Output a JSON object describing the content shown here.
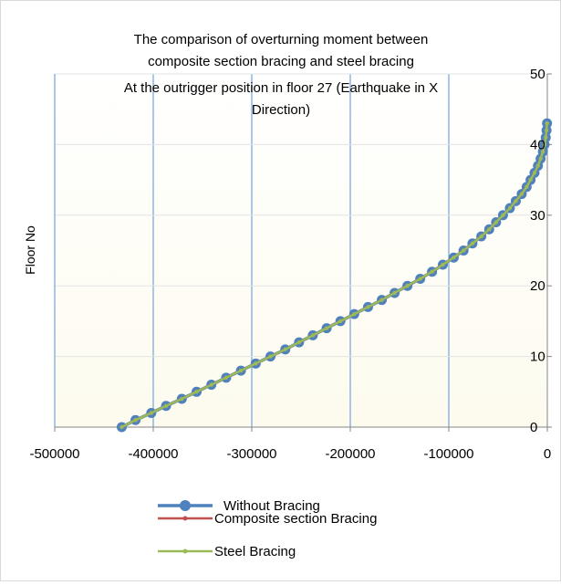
{
  "chart_data": {
    "type": "line",
    "title_lines": [
      "The comparison of overturning moment between",
      "composite section bracing and steel bracing",
      "At the outrigger position in floor 27 (Earthquake in X",
      "Direction)"
    ],
    "xlabel": "",
    "ylabel": "Floor No",
    "xlim": [
      -500000,
      0
    ],
    "ylim": [
      0,
      50
    ],
    "x_ticks": [
      -500000,
      -400000,
      -300000,
      -200000,
      -100000,
      0
    ],
    "x_tick_labels": [
      "-500000",
      "-400000",
      "-300000",
      "-200000",
      "-100000",
      "0"
    ],
    "y_ticks": [
      0,
      10,
      20,
      30,
      40,
      50
    ],
    "y_tick_labels": [
      "0",
      "10",
      "20",
      "30",
      "40",
      "50"
    ],
    "y_axis_side": "right",
    "grid": true,
    "legend_position": "bottom",
    "y": [
      0,
      1,
      2,
      3,
      4,
      5,
      6,
      7,
      8,
      9,
      10,
      11,
      12,
      13,
      14,
      15,
      16,
      17,
      18,
      19,
      20,
      21,
      22,
      23,
      24,
      25,
      26,
      27,
      28,
      29,
      30,
      31,
      32,
      33,
      34,
      35,
      36,
      37,
      38,
      39,
      40,
      41,
      42,
      43
    ],
    "series": [
      {
        "name": "Without Bracing",
        "color": "#4f81bd",
        "marker": "circle-large",
        "x": [
          -432000,
          -418000,
          -402000,
          -387000,
          -371000,
          -356000,
          -341000,
          -326000,
          -311000,
          -296000,
          -281000,
          -266000,
          -252000,
          -238000,
          -224000,
          -210000,
          -196000,
          -182000,
          -168000,
          -155000,
          -142000,
          -129000,
          -117000,
          -106000,
          -95000,
          -85000,
          -76000,
          -67000,
          -59000,
          -52000,
          -45000,
          -38000,
          -32000,
          -26000,
          -21000,
          -17000,
          -13000,
          -9500,
          -6800,
          -4500,
          -2800,
          -1600,
          -800,
          -300
        ]
      },
      {
        "name": "Composite section Bracing",
        "color": "#c0504d",
        "marker": "circle-small",
        "x": [
          -432000,
          -418000,
          -402000,
          -387000,
          -371000,
          -356000,
          -341000,
          -326000,
          -311000,
          -296000,
          -281000,
          -266000,
          -252000,
          -238000,
          -224000,
          -210000,
          -196000,
          -182000,
          -168000,
          -155000,
          -142000,
          -129000,
          -117000,
          -106000,
          -95000,
          -85000,
          -76000,
          -67000,
          -59000,
          -52000,
          -45000,
          -38000,
          -32000,
          -26000,
          -21000,
          -17000,
          -13000,
          -9500,
          -6800,
          -4500,
          -2800,
          -1600,
          -800,
          -300
        ]
      },
      {
        "name": "Steel Bracing",
        "color": "#9bbb59",
        "marker": "circle-small",
        "x": [
          -432000,
          -418000,
          -402000,
          -387000,
          -371000,
          -356000,
          -341000,
          -326000,
          -311000,
          -296000,
          -281000,
          -266000,
          -252000,
          -238000,
          -224000,
          -210000,
          -196000,
          -182000,
          -168000,
          -155000,
          -142000,
          -129000,
          -117000,
          -106000,
          -95000,
          -85000,
          -76000,
          -67000,
          -59000,
          -52000,
          -45000,
          -38000,
          -32000,
          -26000,
          -21000,
          -17000,
          -13000,
          -9500,
          -6800,
          -4500,
          -2800,
          -1600,
          -800,
          -300
        ]
      }
    ],
    "background_gradient": [
      "#ffffff",
      "#fdfbee"
    ]
  }
}
